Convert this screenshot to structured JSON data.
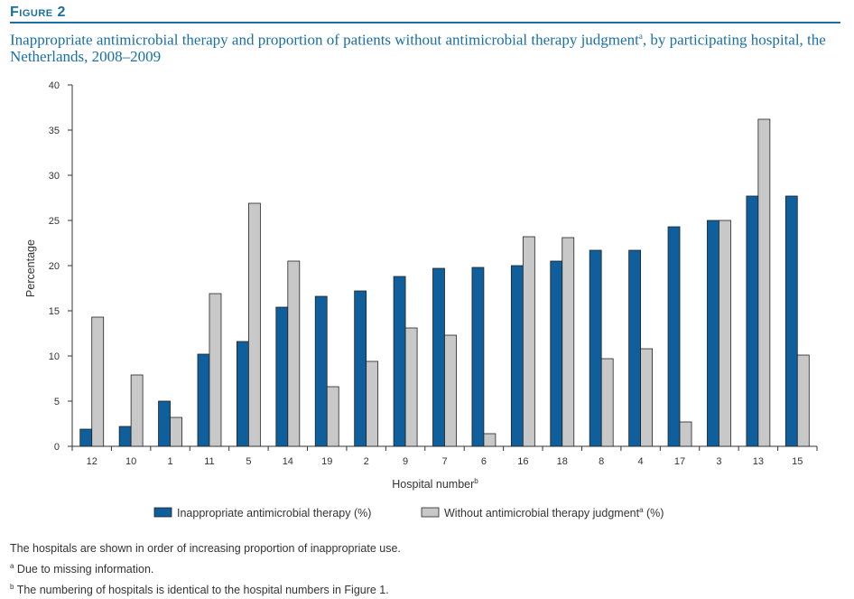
{
  "figure": {
    "label": "Figure 2",
    "title_main": "Inappropriate antimicrobial therapy and proportion of patients without antimicrobial therapy judgment",
    "title_sup": "a",
    "title_tail": ", by participating hospital, the Netherlands, 2008–2009"
  },
  "notes": {
    "line1": "The hospitals are shown in order of increasing proportion of inappropriate use.",
    "line2_sup": "a",
    "line2": " Due to missing information.",
    "line3_sup": "b",
    "line3": " The numbering of hospitals is identical to the hospital numbers in Figure 1."
  },
  "chart_data": {
    "type": "bar",
    "title": "Inappropriate antimicrobial therapy and proportion of patients without antimicrobial therapy judgment, by participating hospital, the Netherlands, 2008–2009",
    "xlabel": "Hospital number",
    "xlabel_sup": "b",
    "ylabel": "Percentage",
    "ylim": [
      0,
      40
    ],
    "yticks": [
      0,
      5,
      10,
      15,
      20,
      25,
      30,
      35,
      40
    ],
    "categories": [
      "12",
      "10",
      "1",
      "11",
      "5",
      "14",
      "19",
      "2",
      "9",
      "7",
      "6",
      "16",
      "18",
      "8",
      "4",
      "17",
      "3",
      "13",
      "15"
    ],
    "series": [
      {
        "name": "Inappropriate antimicrobial therapy (%)",
        "color": "#0f5f9c",
        "values": [
          1.9,
          2.2,
          5.0,
          10.2,
          11.6,
          15.4,
          16.6,
          17.2,
          18.8,
          19.7,
          19.8,
          20.0,
          20.5,
          21.7,
          21.7,
          24.3,
          25.0,
          27.7,
          27.7
        ]
      },
      {
        "name": "Without antimicrobial therapy judgment",
        "name_sup": "a",
        "name_tail": " (%)",
        "color": "#c8c8c8",
        "values": [
          14.3,
          7.9,
          3.2,
          16.9,
          26.9,
          20.5,
          6.6,
          9.4,
          13.1,
          12.3,
          1.4,
          23.2,
          23.1,
          9.7,
          10.8,
          2.7,
          25.0,
          36.2,
          10.1
        ]
      }
    ],
    "legend_position": "bottom-center",
    "grid": false
  }
}
